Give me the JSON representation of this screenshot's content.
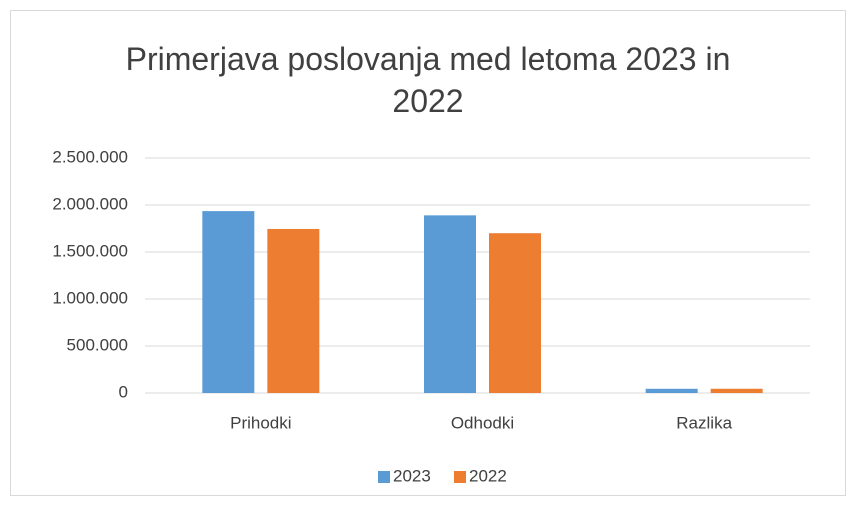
{
  "chart_data": {
    "type": "bar",
    "title": "Primerjava poslovanja med letoma 2023 in 2022",
    "categories": [
      "Prihodki",
      "Odhodki",
      "Razlika"
    ],
    "series": [
      {
        "name": "2023",
        "color": "#5b9bd5",
        "values": [
          1935000,
          1890000,
          45000
        ]
      },
      {
        "name": "2022",
        "color": "#ed7d31",
        "values": [
          1745000,
          1700000,
          45000
        ]
      }
    ],
    "ylim": [
      0,
      2500000
    ],
    "yticks": [
      0,
      {
        "value": 500000,
        "label": "500.000"
      },
      {
        "value": 1000000,
        "label": "1.000.000"
      },
      {
        "value": 1500000,
        "label": "1.500.000"
      },
      {
        "value": 2000000,
        "label": "2.000.000"
      },
      {
        "value": 2500000,
        "label": "2.500.000"
      }
    ],
    "grid": true,
    "legend": "bottom"
  }
}
